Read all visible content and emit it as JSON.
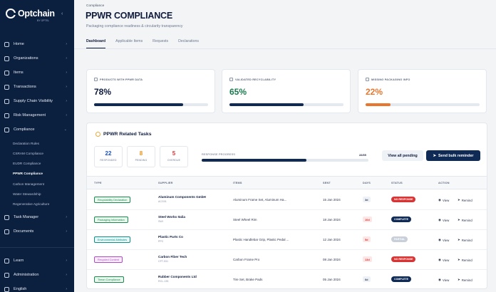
{
  "app": {
    "logo_text": "Optchain",
    "logo_sub": "BY OPTEL"
  },
  "sidebar": {
    "items": [
      {
        "label": "Home"
      },
      {
        "label": "Organizations"
      },
      {
        "label": "Items"
      },
      {
        "label": "Transactions"
      },
      {
        "label": "Supply Chain Visibility"
      },
      {
        "label": "Risk Management"
      },
      {
        "label": "Compliance"
      }
    ],
    "compliance_sub": [
      {
        "label": "Declaration Rules"
      },
      {
        "label": "CSRAM Compliance"
      },
      {
        "label": "EUDR Compliance"
      },
      {
        "label": "PPWR Compliance"
      },
      {
        "label": "Carbon Management"
      },
      {
        "label": "Water Stewardship"
      },
      {
        "label": "Regenerative Agriculture"
      }
    ],
    "after": [
      {
        "label": "Task Manager"
      },
      {
        "label": "Documents"
      }
    ],
    "bottom": [
      {
        "label": "Learn"
      },
      {
        "label": "Administration"
      },
      {
        "label": "English"
      }
    ]
  },
  "header": {
    "breadcrumb": "Compliance",
    "title": "PPWR COMPLIANCE",
    "subtitle": "Packaging compliance readiness & circularity transparency"
  },
  "tabs": [
    {
      "label": "Dashboard"
    },
    {
      "label": "Applicable Items"
    },
    {
      "label": "Requests"
    },
    {
      "label": "Declarations"
    }
  ],
  "stats": [
    {
      "label": "PRODUCTS WITH PPWR DATA",
      "value": "78%",
      "progress": 0.78,
      "color": "#1a7a4e",
      "bar": "#0f2a55"
    },
    {
      "label": "VALIDATED RECYCLABILITY",
      "value": "65%",
      "progress": 0.65,
      "color": "#1a7a4e",
      "bar": "#0f2a55"
    },
    {
      "label": "MISSING PACKAGING INFO",
      "value": "22%",
      "progress": 0.22,
      "color": "#e8762d",
      "bar": "#e8762d"
    }
  ],
  "tasks": {
    "title": "PPWR Related Tasks",
    "mini": [
      {
        "num": "22",
        "label": "RESPONDED",
        "color": "#1c4fb8"
      },
      {
        "num": "8",
        "label": "PENDING",
        "color": "#e8921f"
      },
      {
        "num": "5",
        "label": "OVERDUE",
        "color": "#d23a3a"
      }
    ],
    "progress_label": "RESPONSE PROGRESS",
    "progress_count": "22/35",
    "progress": 0.628,
    "view_all_label": "View all pending",
    "bulk_label": "Send bulk reminder",
    "columns": [
      "TYPE",
      "SUPPLIER",
      "ITEMS",
      "SENT",
      "DAYS",
      "STATUS",
      "ACTION"
    ],
    "rows": [
      {
        "type": "Recyclability Declaration",
        "type_color": "#1a8a4e",
        "type_bg": "#e9f7ef",
        "supplier": "Aluminum Components GmbH",
        "code": "ACG01",
        "items": "Aluminum Frame Set, Aluminum Ha...",
        "sent": "15 Jan 2024",
        "days": "3d",
        "days_color": "#3a4660",
        "days_bg": "#eef1f5",
        "status": "NO RESPONSE",
        "status_bg": "#d93434"
      },
      {
        "type": "Packaging Information",
        "type_color": "#1a8a4e",
        "type_bg": "#e9f7ef",
        "supplier": "Steel Works Italia",
        "code": "SWI",
        "items": "Steel Wheel Rim",
        "sent": "18 Jan 2024",
        "days": "10d",
        "days_color": "#d23a3a",
        "days_bg": "#fde6e6",
        "status": "COMPLETE",
        "status_bg": "#0f2a55"
      },
      {
        "type": "Environmental Attributes",
        "type_color": "#0f8f8a",
        "type_bg": "#e6f7f6",
        "supplier": "Plastic Parts Co",
        "code": "PPC",
        "items": "Plastic Handlebar Grip, Plastic Pedal ...",
        "sent": "12 Jan 2024",
        "days": "5d",
        "days_color": "#d23a3a",
        "days_bg": "#fde6e6",
        "status": "PARTIAL",
        "status_bg": "#c9cfd9"
      },
      {
        "type": "Recycled Content",
        "type_color": "#b04cc4",
        "type_bg": "#f7ecfa",
        "supplier": "Carbon Fiber Tech",
        "code": "CFT-531",
        "items": "Carbon Frame Pro",
        "sent": "08 Jan 2024",
        "days": "13d",
        "days_color": "#d23a3a",
        "days_bg": "#fde6e6",
        "status": "NO RESPONSE",
        "status_bg": "#d93434"
      },
      {
        "type": "Tirean Compliance",
        "type_color": "#1a8a4e",
        "type_bg": "#e9f7ef",
        "supplier": "Rubber Components Ltd",
        "code": "RCL-135",
        "items": "Tire Set, Brake Pads",
        "sent": "05 Jan 2024",
        "days": "6d",
        "days_color": "#3a4660",
        "days_bg": "#eef1f5",
        "status": "COMPLETE",
        "status_bg": "#0f2a55"
      }
    ],
    "action_view": "View",
    "action_remind": "Remind"
  }
}
